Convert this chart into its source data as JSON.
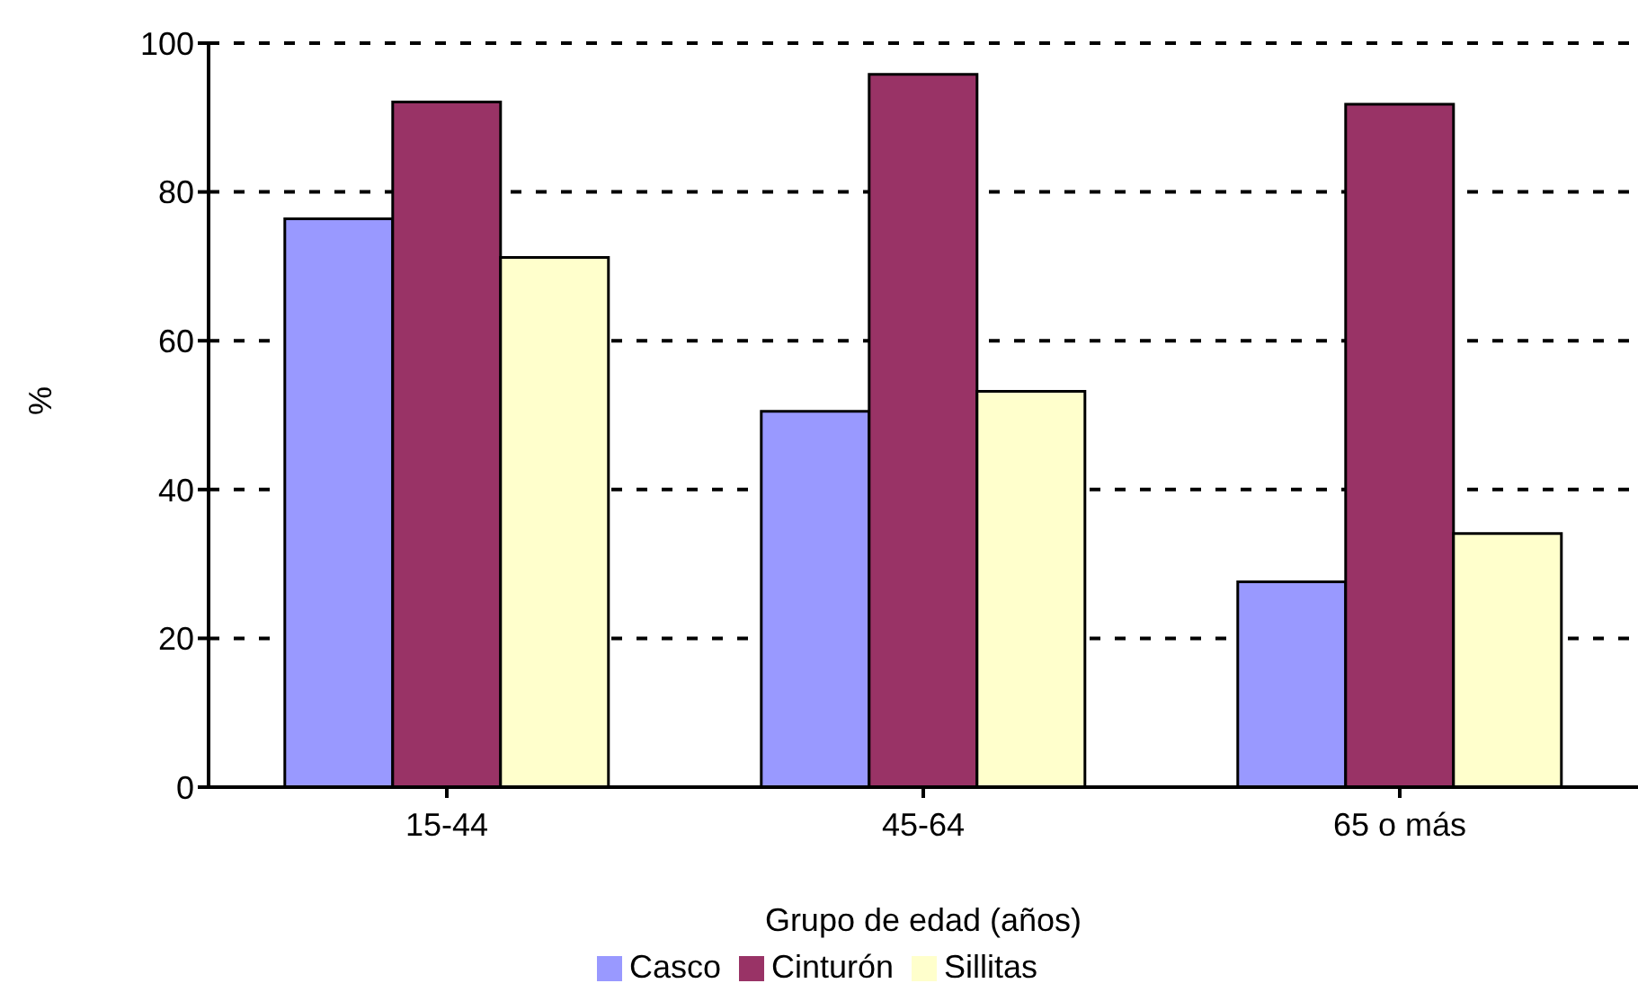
{
  "chart_data": {
    "type": "bar",
    "xlabel": "Grupo de edad (años)",
    "ylabel": "%",
    "categories": [
      "15-44",
      "45-64",
      "65 o más"
    ],
    "series": [
      {
        "name": "Casco",
        "color": "#9999ff",
        "values": [
          76.4,
          50.5,
          27.6
        ]
      },
      {
        "name": "Cinturón",
        "color": "#993366",
        "values": [
          92.1,
          95.8,
          91.8
        ]
      },
      {
        "name": "Sillitas",
        "color": "#ffffcc",
        "values": [
          71.2,
          53.2,
          34.1
        ]
      }
    ],
    "ylim": [
      0,
      100
    ],
    "yticks": [
      0,
      20,
      40,
      60,
      80,
      100
    ],
    "grid": "y",
    "legend": "bottom"
  }
}
